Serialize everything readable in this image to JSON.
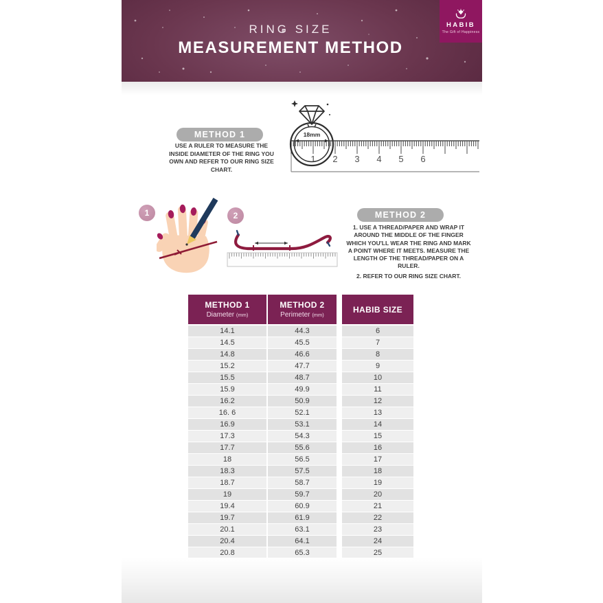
{
  "header": {
    "title_top": "RING SIZE",
    "title_main": "MEASUREMENT METHOD",
    "brand": {
      "name": "HABIB",
      "tagline": "The Gift of Happiness"
    }
  },
  "method1": {
    "badge": "METHOD 1",
    "description": "USE A RULER TO MEASURE THE INSIDE DIAMETER OF THE RING YOU OWN AND REFER TO OUR RING SIZE CHART.",
    "ring_label": "18mm",
    "ruler_numbers": [
      1,
      2,
      3,
      4,
      5,
      6
    ]
  },
  "method2": {
    "badge": "METHOD 2",
    "step1_number": "1",
    "step2_number": "2",
    "instruction_1": "1. USE A THREAD/PAPER AND WRAP IT AROUND THE MIDDLE OF THE FINGER WHICH YOU'LL WEAR THE RING AND MARK A POINT WHERE IT MEETS. MEASURE THE LENGTH OF THE THREAD/PAPER ON A RULER.",
    "instruction_2": "2. REFER TO OUR RING SIZE CHART."
  },
  "size_chart": {
    "columns": [
      {
        "title": "METHOD 1",
        "subtitle": "Diameter",
        "unit": "(mm)"
      },
      {
        "title": "METHOD 2",
        "subtitle": "Perimeter",
        "unit": "(mm)"
      },
      {
        "title": "HABIB SIZE",
        "subtitle": "",
        "unit": ""
      }
    ],
    "rows": [
      [
        "14.1",
        "44.3",
        "6"
      ],
      [
        "14.5",
        "45.5",
        "7"
      ],
      [
        "14.8",
        "46.6",
        "8"
      ],
      [
        "15.2",
        "47.7",
        "9"
      ],
      [
        "15.5",
        "48.7",
        "10"
      ],
      [
        "15.9",
        "49.9",
        "11"
      ],
      [
        "16.2",
        "50.9",
        "12"
      ],
      [
        "16. 6",
        "52.1",
        "13"
      ],
      [
        "16.9",
        "53.1",
        "14"
      ],
      [
        "17.3",
        "54.3",
        "15"
      ],
      [
        "17.7",
        "55.6",
        "16"
      ],
      [
        "18",
        "56.5",
        "17"
      ],
      [
        "18.3",
        "57.5",
        "18"
      ],
      [
        "18.7",
        "58.7",
        "19"
      ],
      [
        "19",
        "59.7",
        "20"
      ],
      [
        "19.4",
        "60.9",
        "21"
      ],
      [
        "19.7",
        "61.9",
        "22"
      ],
      [
        "20.1",
        "63.1",
        "23"
      ],
      [
        "20.4",
        "64.1",
        "24"
      ],
      [
        "20.8",
        "65.3",
        "25"
      ]
    ]
  },
  "colors": {
    "brand_magenta": "#8f1760",
    "header_plum": "#5d2c44",
    "table_header": "#7b2254",
    "badge_gray": "#acacac",
    "row_dark": "#e2e2e2",
    "row_light": "#efefef",
    "thread_maroon": "#8e1b3f"
  }
}
